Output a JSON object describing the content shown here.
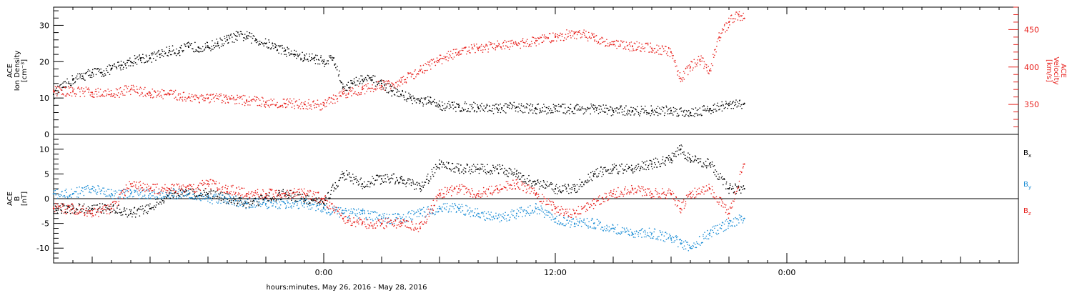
{
  "x_axis_title": "hours:minutes, May 26, 2016 - May 28, 2016",
  "colors": {
    "black": "#000000",
    "red": "#e8231f",
    "blue": "#1f8fd6"
  },
  "chart_data": [
    {
      "type": "scatter",
      "panel": "top",
      "xlim_hours": [
        -14,
        36
      ],
      "x_ticks": [
        {
          "hour": 0,
          "label": "0:00"
        },
        {
          "hour": 12,
          "label": "12:00"
        },
        {
          "hour": 24,
          "label": "0:00"
        }
      ],
      "left_axis": {
        "label_lines": [
          "ACE",
          "Ion Density",
          "[cm⁻³]"
        ],
        "ylim": [
          0,
          35
        ],
        "ticks": [
          "0",
          "10",
          "20",
          "30"
        ],
        "color": "#000000"
      },
      "right_axis": {
        "label_lines": [
          "ACE",
          "Velocity",
          "[km/s]"
        ],
        "ylim": [
          310,
          480
        ],
        "ticks": [
          "350",
          "400",
          "450"
        ],
        "color": "#e8231f"
      },
      "series": [
        {
          "axis": "left",
          "color": "#000000",
          "x": [
            -14,
            -13.5,
            -13,
            -12.5,
            -12,
            -11.5,
            -11,
            -10.5,
            -10,
            -9.5,
            -9,
            -8.5,
            -8,
            -7.5,
            -7,
            -6.5,
            -6,
            -5.5,
            -5,
            -4.5,
            -4,
            -3.5,
            -3,
            -2.5,
            -2,
            -1.5,
            -1,
            -0.5,
            0,
            0.5,
            1,
            1.5,
            2,
            2.5,
            3,
            3.5,
            4,
            4.5,
            5,
            5.5,
            6,
            7,
            8,
            9,
            10,
            11,
            12,
            13,
            14,
            15,
            16,
            17,
            18,
            19,
            20,
            21,
            21.8
          ],
          "y": [
            11,
            13,
            15,
            16,
            17,
            17,
            18,
            19,
            20,
            21,
            21,
            22,
            23,
            23,
            24,
            24,
            24,
            25,
            26,
            27,
            27,
            26,
            25,
            24,
            23,
            22,
            21,
            21,
            20,
            21,
            13,
            14,
            15,
            15,
            14,
            12,
            11,
            10,
            9,
            9,
            8,
            7.5,
            7.5,
            7,
            7.5,
            7,
            7,
            7,
            7,
            6.5,
            6.5,
            6.5,
            6.5,
            6,
            7,
            8,
            8.5
          ]
        },
        {
          "axis": "right",
          "color": "#e8231f",
          "x": [
            -14,
            -13,
            -12,
            -11,
            -10,
            -9,
            -8,
            -7,
            -6,
            -5,
            -4,
            -3,
            -2,
            -1,
            0,
            1,
            2,
            3,
            4,
            5,
            6,
            7,
            8,
            9,
            10,
            11,
            12,
            13,
            14,
            15,
            16,
            17,
            18,
            18.5,
            19,
            19.5,
            20,
            20.5,
            21,
            21.5,
            21.8
          ],
          "y": [
            368,
            367,
            366,
            364,
            370,
            365,
            363,
            360,
            358,
            357,
            355,
            353,
            351,
            350,
            349,
            364,
            370,
            375,
            380,
            395,
            410,
            420,
            425,
            428,
            430,
            435,
            440,
            445,
            440,
            430,
            428,
            425,
            420,
            385,
            400,
            410,
            395,
            440,
            460,
            470,
            465
          ]
        }
      ]
    },
    {
      "type": "scatter",
      "panel": "bottom",
      "xlim_hours": [
        -14,
        36
      ],
      "left_axis": {
        "label_lines": [
          "ACE",
          "B",
          "[nT]"
        ],
        "ylim": [
          -13,
          13
        ],
        "ticks": [
          "-10",
          "-5",
          "0",
          "5",
          "10"
        ],
        "color": "#000000"
      },
      "series": [
        {
          "name": "Bx",
          "label_main": "B",
          "label_sub": "x",
          "color": "#000000",
          "x": [
            -14,
            -13,
            -12,
            -11,
            -10,
            -9,
            -8,
            -7,
            -6,
            -5,
            -4,
            -3,
            -2,
            -1,
            0,
            1,
            2,
            3,
            4,
            5,
            6,
            7,
            8,
            9,
            10,
            11,
            12,
            13,
            14,
            15,
            16,
            17,
            18,
            18.5,
            19,
            20,
            21,
            21.8
          ],
          "y": [
            -2,
            -2,
            -2,
            -2,
            -3,
            -2,
            1,
            1,
            1,
            0,
            -1,
            0,
            1,
            0,
            -1,
            5,
            3,
            4,
            4,
            2,
            7,
            6,
            6,
            6,
            5,
            3,
            2,
            2,
            5,
            6,
            6,
            7,
            8,
            10,
            8,
            7,
            2,
            2
          ]
        },
        {
          "name": "By",
          "label_main": "B",
          "label_sub": "y",
          "color": "#1f8fd6",
          "x": [
            -14,
            -13,
            -12,
            -11,
            -10,
            -9,
            -8,
            -7,
            -6,
            -5,
            -4,
            -3,
            -2,
            -1,
            0,
            1,
            2,
            3,
            4,
            5,
            6,
            7,
            8,
            9,
            10,
            11,
            12,
            13,
            14,
            15,
            16,
            17,
            18,
            18.5,
            19,
            20,
            21,
            21.8
          ],
          "y": [
            1,
            1,
            2,
            1,
            1,
            1,
            1,
            1,
            0,
            0,
            -1,
            -1,
            -1,
            -1,
            -2,
            -3,
            -3,
            -4,
            -4,
            -3,
            -2,
            -2,
            -3,
            -4,
            -3,
            -2,
            -4,
            -5,
            -5,
            -6,
            -7,
            -7,
            -8,
            -9,
            -10,
            -7,
            -5,
            -4
          ]
        },
        {
          "name": "Bz",
          "label_main": "B",
          "label_sub": "z",
          "color": "#e8231f",
          "x": [
            -14,
            -13,
            -12,
            -11,
            -10,
            -9,
            -8,
            -7,
            -6,
            -5,
            -4,
            -3,
            -2,
            -1,
            0,
            1,
            2,
            3,
            4,
            5,
            6,
            7,
            8,
            9,
            10,
            11,
            12,
            13,
            14,
            15,
            16,
            17,
            18,
            18.5,
            19,
            20,
            21,
            21.8
          ],
          "y": [
            -2,
            -2,
            -3,
            -2,
            3,
            2,
            2,
            2,
            3,
            2,
            1,
            1,
            1,
            1,
            0,
            -4,
            -5,
            -5,
            -5,
            -6,
            1,
            2,
            1,
            2,
            3,
            1,
            -2,
            -3,
            -1,
            1,
            2,
            1,
            1,
            -2,
            1,
            2,
            -3,
            7
          ]
        }
      ]
    }
  ]
}
